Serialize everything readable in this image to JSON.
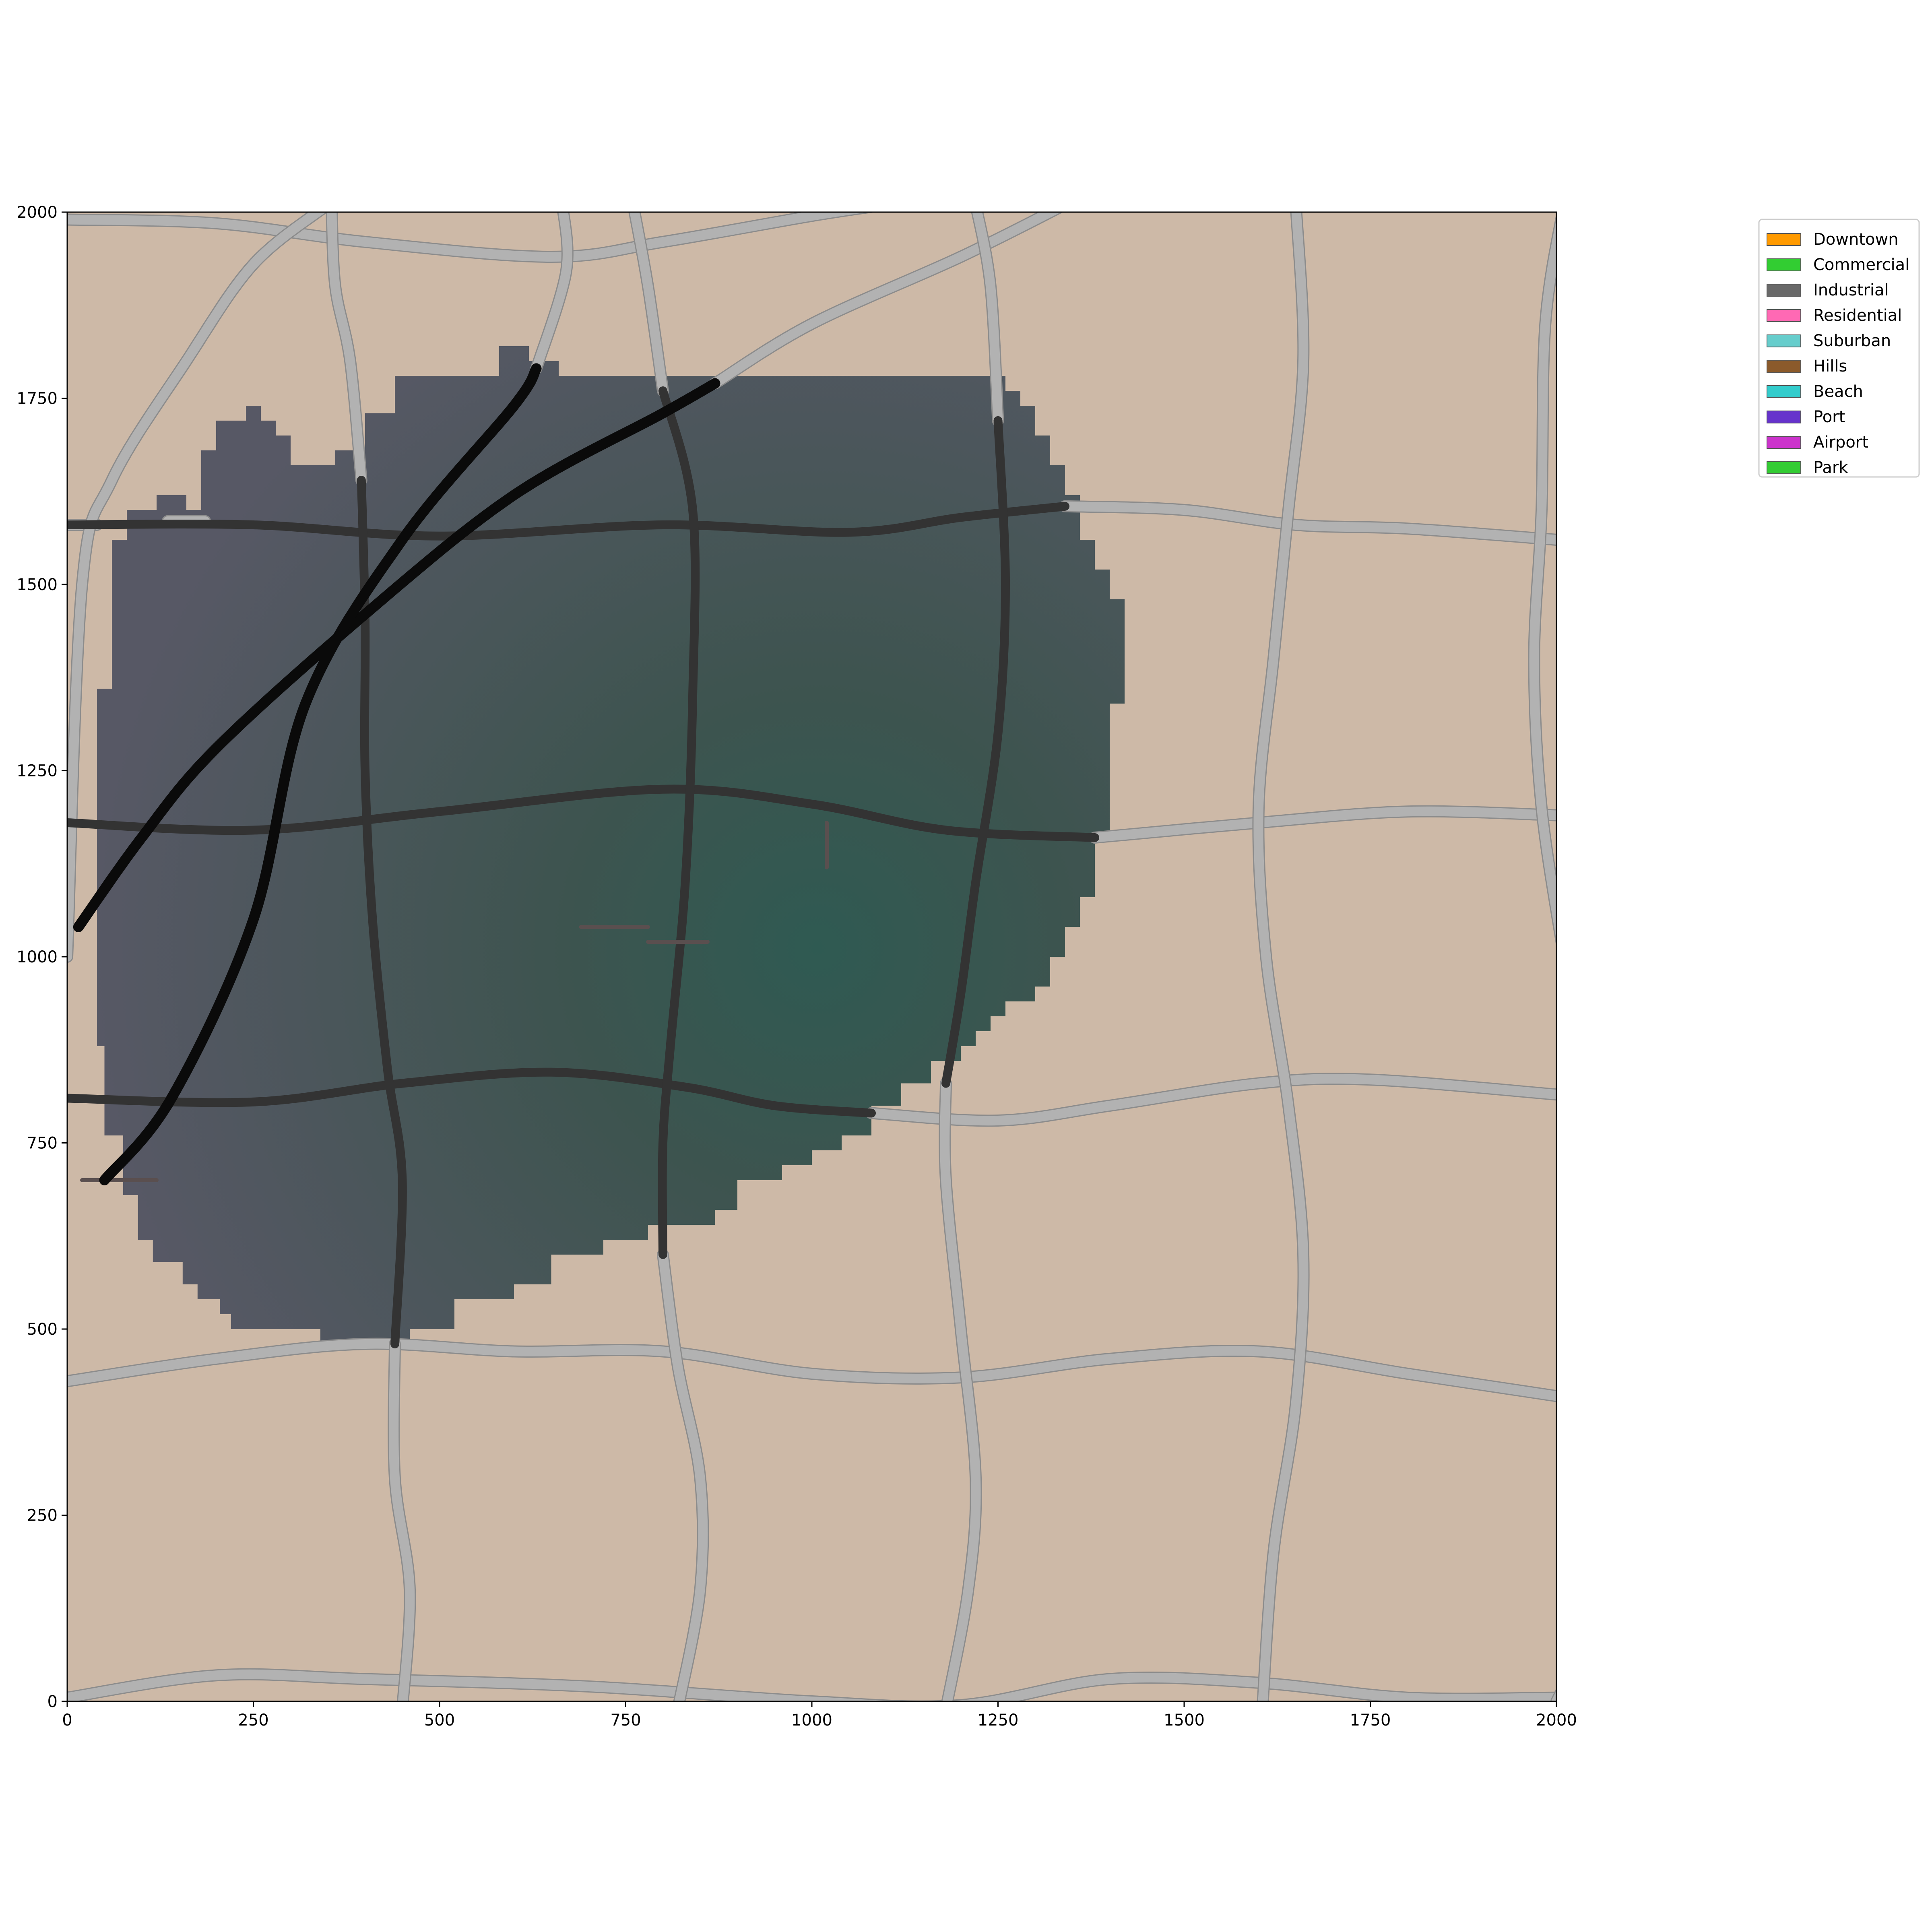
{
  "map": {
    "xlim": [
      0,
      2000
    ],
    "ylim": [
      0,
      2000
    ],
    "x_ticks": [
      0,
      250,
      500,
      750,
      1000,
      1250,
      1500,
      1750,
      2000
    ],
    "y_ticks": [
      0,
      250,
      500,
      750,
      1000,
      1250,
      1500,
      1750,
      2000
    ],
    "colors": {
      "background": "#cdb9a7",
      "district_fill": "#575865",
      "district_center": "#2f5a52",
      "road_minor": "#b2b2b2",
      "road_minor_edge": "#8c8c8c",
      "road_in_district": "#333333",
      "highway": "#0a0a0a"
    },
    "district_outline": [
      [
        50,
        760
      ],
      [
        75,
        760
      ],
      [
        75,
        680
      ],
      [
        95,
        680
      ],
      [
        95,
        620
      ],
      [
        115,
        620
      ],
      [
        115,
        590
      ],
      [
        155,
        590
      ],
      [
        155,
        560
      ],
      [
        175,
        560
      ],
      [
        175,
        540
      ],
      [
        205,
        540
      ],
      [
        205,
        520
      ],
      [
        220,
        520
      ],
      [
        220,
        500
      ],
      [
        340,
        500
      ],
      [
        340,
        480
      ],
      [
        460,
        480
      ],
      [
        460,
        500
      ],
      [
        520,
        500
      ],
      [
        520,
        540
      ],
      [
        600,
        540
      ],
      [
        600,
        560
      ],
      [
        650,
        560
      ],
      [
        650,
        600
      ],
      [
        720,
        600
      ],
      [
        720,
        620
      ],
      [
        780,
        620
      ],
      [
        780,
        640
      ],
      [
        870,
        640
      ],
      [
        870,
        660
      ],
      [
        900,
        660
      ],
      [
        900,
        700
      ],
      [
        960,
        700
      ],
      [
        960,
        720
      ],
      [
        1000,
        720
      ],
      [
        1000,
        740
      ],
      [
        1040,
        740
      ],
      [
        1040,
        760
      ],
      [
        1080,
        760
      ],
      [
        1080,
        800
      ],
      [
        1120,
        800
      ],
      [
        1120,
        830
      ],
      [
        1160,
        830
      ],
      [
        1160,
        860
      ],
      [
        1200,
        860
      ],
      [
        1200,
        880
      ],
      [
        1220,
        880
      ],
      [
        1220,
        900
      ],
      [
        1240,
        900
      ],
      [
        1240,
        920
      ],
      [
        1260,
        920
      ],
      [
        1260,
        940
      ],
      [
        1300,
        940
      ],
      [
        1300,
        960
      ],
      [
        1320,
        960
      ],
      [
        1320,
        1000
      ],
      [
        1340,
        1000
      ],
      [
        1340,
        1040
      ],
      [
        1360,
        1040
      ],
      [
        1360,
        1080
      ],
      [
        1380,
        1080
      ],
      [
        1380,
        1160
      ],
      [
        1400,
        1160
      ],
      [
        1400,
        1340
      ],
      [
        1420,
        1340
      ],
      [
        1420,
        1480
      ],
      [
        1400,
        1480
      ],
      [
        1400,
        1520
      ],
      [
        1380,
        1520
      ],
      [
        1380,
        1560
      ],
      [
        1360,
        1560
      ],
      [
        1360,
        1620
      ],
      [
        1340,
        1620
      ],
      [
        1340,
        1660
      ],
      [
        1320,
        1660
      ],
      [
        1320,
        1700
      ],
      [
        1300,
        1700
      ],
      [
        1300,
        1740
      ],
      [
        1280,
        1740
      ],
      [
        1280,
        1760
      ],
      [
        1260,
        1760
      ],
      [
        1260,
        1780
      ],
      [
        660,
        1780
      ],
      [
        660,
        1800
      ],
      [
        620,
        1800
      ],
      [
        620,
        1820
      ],
      [
        580,
        1820
      ],
      [
        580,
        1780
      ],
      [
        440,
        1780
      ],
      [
        440,
        1730
      ],
      [
        400,
        1730
      ],
      [
        400,
        1680
      ],
      [
        360,
        1680
      ],
      [
        360,
        1660
      ],
      [
        300,
        1660
      ],
      [
        300,
        1700
      ],
      [
        280,
        1700
      ],
      [
        280,
        1720
      ],
      [
        260,
        1720
      ],
      [
        260,
        1740
      ],
      [
        240,
        1740
      ],
      [
        240,
        1720
      ],
      [
        200,
        1720
      ],
      [
        200,
        1680
      ],
      [
        180,
        1680
      ],
      [
        180,
        1600
      ],
      [
        160,
        1600
      ],
      [
        160,
        1620
      ],
      [
        120,
        1620
      ],
      [
        120,
        1600
      ],
      [
        80,
        1600
      ],
      [
        80,
        1560
      ],
      [
        60,
        1560
      ],
      [
        60,
        1360
      ],
      [
        40,
        1360
      ],
      [
        40,
        880
      ],
      [
        50,
        880
      ]
    ],
    "roads_in_district": [
      [
        [
          0,
          1580
        ],
        [
          250,
          1580
        ],
        [
          500,
          1565
        ],
        [
          800,
          1580
        ],
        [
          1050,
          1570
        ],
        [
          1200,
          1590
        ],
        [
          1340,
          1605
        ]
      ],
      [
        [
          0,
          1180
        ],
        [
          250,
          1170
        ],
        [
          500,
          1195
        ],
        [
          800,
          1225
        ],
        [
          1000,
          1205
        ],
        [
          1180,
          1170
        ],
        [
          1380,
          1160
        ]
      ],
      [
        [
          0,
          810
        ],
        [
          250,
          805
        ],
        [
          450,
          830
        ],
        [
          650,
          845
        ],
        [
          830,
          825
        ],
        [
          950,
          800
        ],
        [
          1080,
          790
        ]
      ],
      [
        [
          395,
          1640
        ],
        [
          400,
          1450
        ],
        [
          400,
          1250
        ],
        [
          410,
          1050
        ],
        [
          430,
          850
        ],
        [
          450,
          700
        ],
        [
          440,
          480
        ]
      ],
      [
        [
          800,
          1760
        ],
        [
          840,
          1600
        ],
        [
          840,
          1350
        ],
        [
          830,
          1100
        ],
        [
          810,
          880
        ],
        [
          800,
          750
        ],
        [
          800,
          600
        ]
      ],
      [
        [
          1250,
          1720
        ],
        [
          1260,
          1500
        ],
        [
          1250,
          1300
        ],
        [
          1220,
          1100
        ],
        [
          1200,
          950
        ],
        [
          1180,
          830
        ]
      ]
    ],
    "roads_outside": [
      [
        [
          0,
          1990
        ],
        [
          200,
          1985
        ],
        [
          400,
          1960
        ],
        [
          650,
          1940
        ],
        [
          800,
          1960
        ],
        [
          1000,
          1995
        ],
        [
          1100,
          2010
        ]
      ],
      [
        [
          0,
          1580
        ],
        [
          40,
          1580
        ]
      ],
      [
        [
          135,
          1585
        ],
        [
          185,
          1585
        ]
      ],
      [
        [
          1340,
          1605
        ],
        [
          1500,
          1600
        ],
        [
          1650,
          1580
        ],
        [
          1800,
          1575
        ],
        [
          2000,
          1560
        ]
      ],
      [
        [
          1380,
          1160
        ],
        [
          1600,
          1180
        ],
        [
          1800,
          1195
        ],
        [
          2000,
          1190
        ]
      ],
      [
        [
          1080,
          790
        ],
        [
          1250,
          780
        ],
        [
          1400,
          800
        ],
        [
          1600,
          830
        ],
        [
          1750,
          835
        ],
        [
          2000,
          815
        ]
      ],
      [
        [
          0,
          430
        ],
        [
          200,
          460
        ],
        [
          400,
          480
        ],
        [
          600,
          470
        ],
        [
          800,
          470
        ],
        [
          1000,
          440
        ],
        [
          1200,
          435
        ],
        [
          1400,
          460
        ],
        [
          1600,
          470
        ],
        [
          1800,
          440
        ],
        [
          2000,
          410
        ]
      ],
      [
        [
          0,
          5
        ],
        [
          200,
          35
        ],
        [
          400,
          30
        ],
        [
          700,
          20
        ],
        [
          1000,
          0
        ],
        [
          1200,
          -5
        ],
        [
          1400,
          30
        ],
        [
          1600,
          25
        ],
        [
          1800,
          5
        ],
        [
          2000,
          5
        ]
      ],
      [
        [
          0,
          1000
        ],
        [
          20,
          1500
        ],
        [
          60,
          1640
        ],
        [
          160,
          1800
        ],
        [
          250,
          1930
        ],
        [
          350,
          2010
        ]
      ],
      [
        [
          355,
          2010
        ],
        [
          360,
          1900
        ],
        [
          380,
          1800
        ],
        [
          395,
          1640
        ]
      ],
      [
        [
          440,
          480
        ],
        [
          440,
          300
        ],
        [
          460,
          150
        ],
        [
          450,
          -10
        ]
      ],
      [
        [
          665,
          2010
        ],
        [
          670,
          1920
        ],
        [
          630,
          1790
        ]
      ],
      [
        [
          760,
          2010
        ],
        [
          780,
          1900
        ],
        [
          800,
          1760
        ]
      ],
      [
        [
          800,
          600
        ],
        [
          820,
          450
        ],
        [
          850,
          300
        ],
        [
          850,
          150
        ],
        [
          820,
          -10
        ]
      ],
      [
        [
          870,
          1770
        ],
        [
          1000,
          1850
        ],
        [
          1200,
          1940
        ],
        [
          1340,
          2010
        ]
      ],
      [
        [
          1220,
          2010
        ],
        [
          1240,
          1900
        ],
        [
          1250,
          1720
        ]
      ],
      [
        [
          1180,
          830
        ],
        [
          1180,
          700
        ],
        [
          1200,
          500
        ],
        [
          1220,
          300
        ],
        [
          1210,
          150
        ],
        [
          1180,
          -10
        ]
      ],
      [
        [
          1650,
          2010
        ],
        [
          1660,
          1800
        ],
        [
          1640,
          1600
        ],
        [
          1620,
          1400
        ],
        [
          1600,
          1200
        ],
        [
          1610,
          1000
        ],
        [
          1640,
          800
        ],
        [
          1660,
          600
        ],
        [
          1650,
          400
        ],
        [
          1620,
          200
        ],
        [
          1605,
          -10
        ]
      ],
      [
        [
          2010,
          2010
        ],
        [
          1985,
          1850
        ],
        [
          1980,
          1600
        ],
        [
          1970,
          1400
        ],
        [
          1980,
          1200
        ],
        [
          2010,
          1000
        ]
      ],
      [
        [
          2000,
          0
        ],
        [
          2010,
          20
        ]
      ]
    ],
    "highways": [
      [
        [
          15,
          1040
        ],
        [
          100,
          1160
        ],
        [
          200,
          1280
        ],
        [
          400,
          1460
        ],
        [
          600,
          1620
        ],
        [
          800,
          1730
        ],
        [
          870,
          1770
        ]
      ],
      [
        [
          50,
          700
        ],
        [
          140,
          810
        ],
        [
          250,
          1050
        ],
        [
          320,
          1340
        ],
        [
          450,
          1560
        ],
        [
          600,
          1740
        ],
        [
          630,
          1790
        ]
      ]
    ],
    "short_segments": [
      [
        [
          690,
          1040
        ],
        [
          780,
          1040
        ]
      ],
      [
        [
          780,
          1020
        ],
        [
          860,
          1020
        ]
      ],
      [
        [
          1020,
          1120
        ],
        [
          1020,
          1180
        ]
      ],
      [
        [
          20,
          700
        ],
        [
          120,
          700
        ]
      ]
    ]
  },
  "legend": {
    "items": [
      {
        "label": "Downtown",
        "color": "#ff9a00"
      },
      {
        "label": "Commercial",
        "color": "#32cd32"
      },
      {
        "label": "Industrial",
        "color": "#696969"
      },
      {
        "label": "Residential",
        "color": "#ff69b4"
      },
      {
        "label": "Suburban",
        "color": "#66cdcc"
      },
      {
        "label": "Hills",
        "color": "#8b5a2b"
      },
      {
        "label": "Beach",
        "color": "#33cccc"
      },
      {
        "label": "Port",
        "color": "#6633cc"
      },
      {
        "label": "Airport",
        "color": "#cc33cc"
      },
      {
        "label": "Park",
        "color": "#33cc33"
      }
    ]
  }
}
